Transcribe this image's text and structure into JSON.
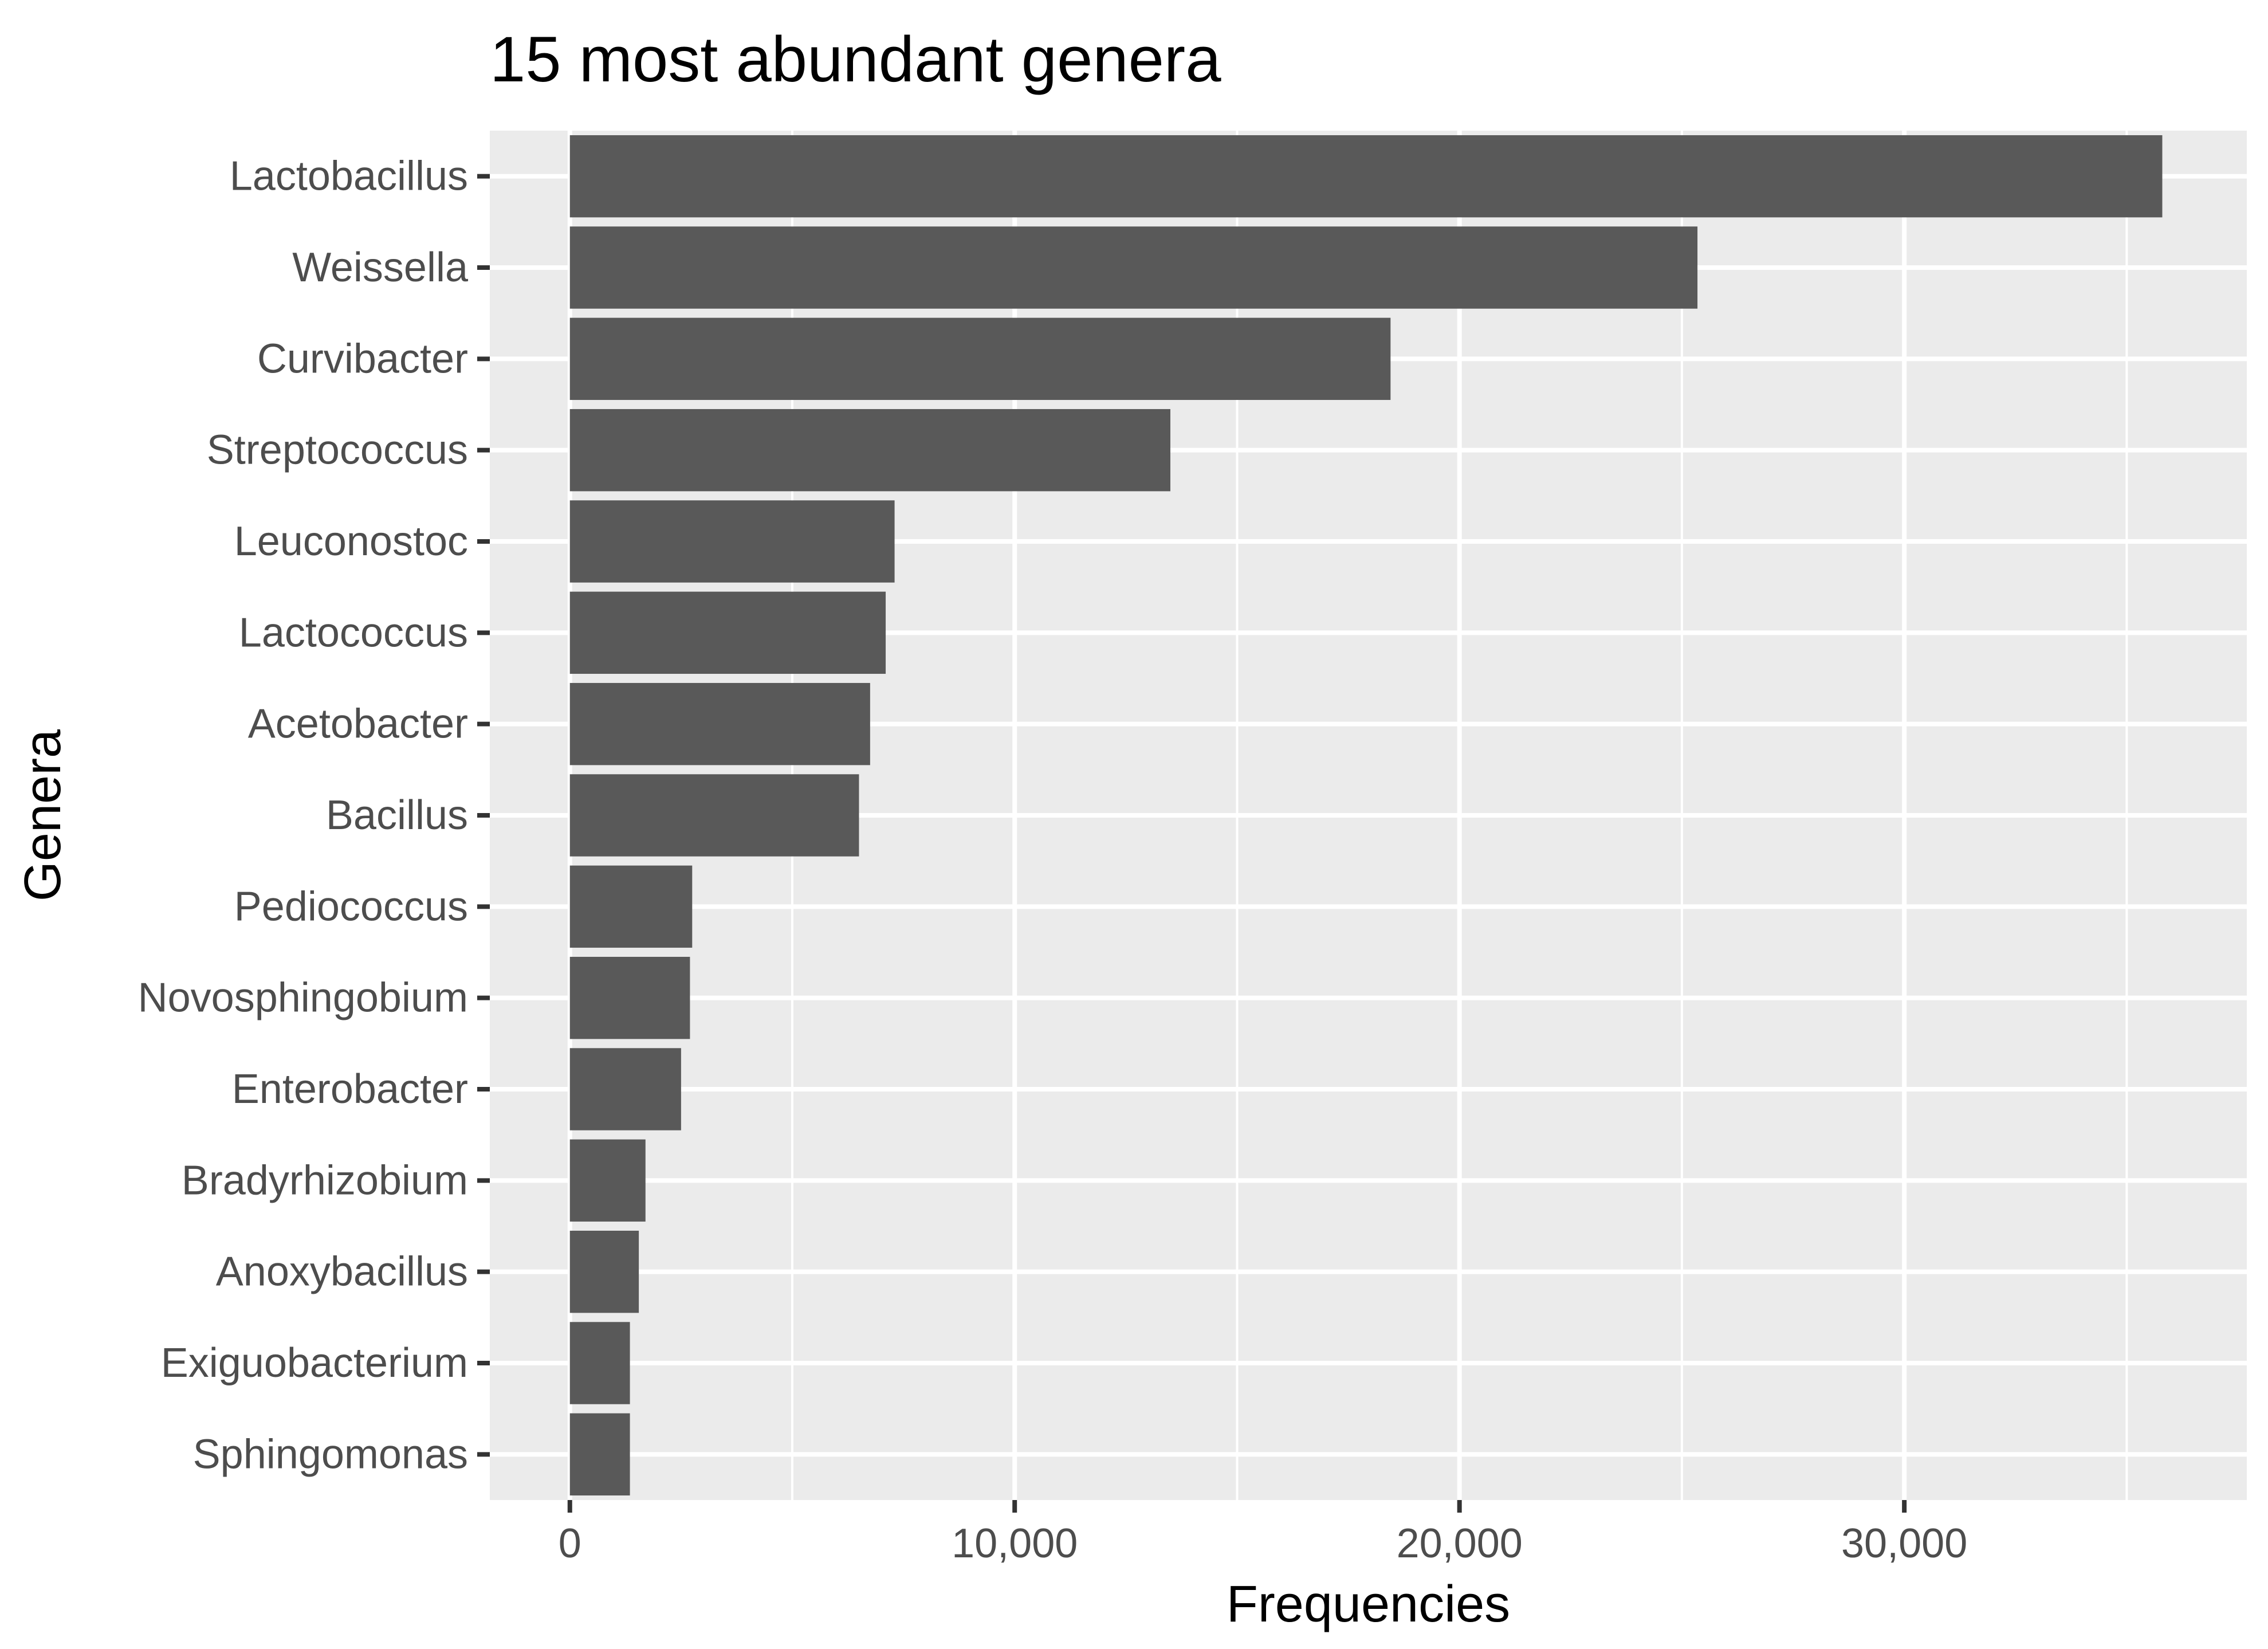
{
  "chart_data": {
    "type": "bar",
    "orientation": "horizontal",
    "title": "15 most abundant genera",
    "xlabel": "Frequencies",
    "ylabel": "Genera",
    "categories": [
      "Lactobacillus",
      "Weissella",
      "Curvibacter",
      "Streptococcus",
      "Leuconostoc",
      "Lactococcus",
      "Acetobacter",
      "Bacillus",
      "Pediococcus",
      "Novosphingobium",
      "Enterobacter",
      "Bradyrhizobium",
      "Anoxybacillus",
      "Exiguobacterium",
      "Sphingomonas"
    ],
    "values": [
      35800,
      25350,
      18450,
      13500,
      7300,
      7100,
      6750,
      6500,
      2750,
      2700,
      2500,
      1700,
      1550,
      1350,
      1350
    ],
    "xlim": [
      -1800,
      37700
    ],
    "x_ticks": [
      0,
      10000,
      20000,
      30000
    ],
    "x_tick_labels": [
      "0",
      "10,000",
      "20,000",
      "30,000"
    ],
    "grid": true,
    "legend": "none",
    "colors": {
      "bar": "#595959",
      "panel_background": "#ebebeb",
      "grid_line": "#ffffff",
      "axis_text": "#4d4d4d",
      "title_text": "#000000",
      "tick_mark": "#333333"
    }
  }
}
